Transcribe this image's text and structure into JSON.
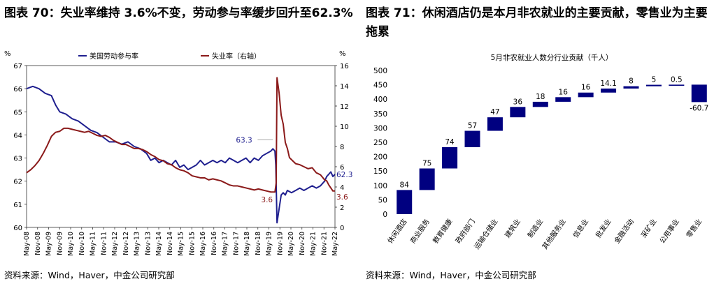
{
  "left_figure": {
    "title": "图表 70：失业率维持 3.6%不变，劳动参与率缓步回升至62.3%",
    "source": "资料来源：Wind，Haver，中金公司研究部"
  },
  "right_figure": {
    "title": "图表 71：休闲酒店仍是本月非农就业的主要贡献，零售业为主要拖累",
    "source": "资料来源：Wind，Haver，中金公司研究部"
  },
  "chart_data": [
    {
      "type": "line",
      "title": "",
      "x_ticks": [
        "May-08",
        "Nov-08",
        "May-09",
        "Nov-09",
        "May-10",
        "Nov-10",
        "May-11",
        "Nov-11",
        "May-12",
        "Nov-12",
        "May-13",
        "Nov-13",
        "May-14",
        "Nov-14",
        "May-15",
        "Nov-15",
        "May-16",
        "Nov-16",
        "May-17",
        "Nov-17",
        "May-18",
        "Nov-18",
        "May-19",
        "Nov-19",
        "May-20",
        "Nov-20",
        "May-21",
        "Nov-21",
        "May-22"
      ],
      "y_left": {
        "label": "%",
        "ticks": [
          67,
          66,
          65,
          64,
          63,
          62,
          61,
          60
        ],
        "range": [
          60,
          67
        ]
      },
      "y_right": {
        "label": "%",
        "ticks": [
          16,
          14,
          12,
          10,
          8,
          6,
          4,
          2,
          0
        ],
        "range": [
          0,
          16
        ]
      },
      "series": [
        {
          "name": "美国劳动参与率",
          "axis": "left",
          "color": "#1f1f8f",
          "points": [
            [
              0,
              66.0
            ],
            [
              3,
              66.1
            ],
            [
              6,
              66.0
            ],
            [
              9,
              65.8
            ],
            [
              12,
              65.7
            ],
            [
              14,
              65.3
            ],
            [
              16,
              65.0
            ],
            [
              19,
              64.9
            ],
            [
              22,
              64.7
            ],
            [
              25,
              64.6
            ],
            [
              28,
              64.4
            ],
            [
              31,
              64.2
            ],
            [
              34,
              64.1
            ],
            [
              37,
              63.9
            ],
            [
              40,
              63.7
            ],
            [
              43,
              63.7
            ],
            [
              46,
              63.6
            ],
            [
              49,
              63.7
            ],
            [
              52,
              63.5
            ],
            [
              55,
              63.4
            ],
            [
              58,
              63.2
            ],
            [
              60,
              62.9
            ],
            [
              62,
              63.0
            ],
            [
              64,
              62.8
            ],
            [
              66,
              62.9
            ],
            [
              68,
              62.8
            ],
            [
              70,
              62.7
            ],
            [
              72,
              62.9
            ],
            [
              74,
              62.6
            ],
            [
              76,
              62.7
            ],
            [
              78,
              62.5
            ],
            [
              80,
              62.6
            ],
            [
              82,
              62.7
            ],
            [
              84,
              62.9
            ],
            [
              86,
              62.7
            ],
            [
              88,
              62.8
            ],
            [
              90,
              62.9
            ],
            [
              92,
              62.8
            ],
            [
              94,
              62.9
            ],
            [
              96,
              62.8
            ],
            [
              98,
              63.0
            ],
            [
              100,
              62.9
            ],
            [
              102,
              62.8
            ],
            [
              104,
              62.9
            ],
            [
              106,
              63.0
            ],
            [
              108,
              62.8
            ],
            [
              110,
              63.0
            ],
            [
              112,
              62.9
            ],
            [
              114,
              63.1
            ],
            [
              116,
              63.2
            ],
            [
              118,
              63.3
            ],
            [
              119,
              63.4
            ],
            [
              120,
              63.3
            ],
            [
              120.4,
              62.7
            ],
            [
              121,
              60.2
            ],
            [
              122,
              60.8
            ],
            [
              123,
              61.4
            ],
            [
              124,
              61.5
            ],
            [
              125,
              61.4
            ],
            [
              126,
              61.6
            ],
            [
              128,
              61.5
            ],
            [
              130,
              61.6
            ],
            [
              132,
              61.7
            ],
            [
              134,
              61.6
            ],
            [
              136,
              61.7
            ],
            [
              138,
              61.8
            ],
            [
              140,
              61.7
            ],
            [
              142,
              61.8
            ],
            [
              144,
              62.0
            ],
            [
              145,
              62.2
            ],
            [
              146,
              62.3
            ],
            [
              147,
              62.4
            ],
            [
              148,
              62.2
            ],
            [
              149,
              62.3
            ]
          ]
        },
        {
          "name": "失业率（右轴）",
          "axis": "right",
          "color": "#8b1a1a",
          "points": [
            [
              0,
              5.4
            ],
            [
              2,
              5.7
            ],
            [
              4,
              6.1
            ],
            [
              6,
              6.6
            ],
            [
              8,
              7.3
            ],
            [
              10,
              8.1
            ],
            [
              12,
              9.0
            ],
            [
              14,
              9.4
            ],
            [
              16,
              9.5
            ],
            [
              18,
              9.8
            ],
            [
              20,
              9.8
            ],
            [
              22,
              9.7
            ],
            [
              24,
              9.6
            ],
            [
              26,
              9.5
            ],
            [
              28,
              9.4
            ],
            [
              30,
              9.5
            ],
            [
              32,
              9.3
            ],
            [
              34,
              9.1
            ],
            [
              36,
              9.0
            ],
            [
              38,
              9.1
            ],
            [
              40,
              8.9
            ],
            [
              42,
              8.6
            ],
            [
              44,
              8.4
            ],
            [
              46,
              8.2
            ],
            [
              48,
              8.2
            ],
            [
              50,
              8.0
            ],
            [
              52,
              7.8
            ],
            [
              54,
              7.8
            ],
            [
              56,
              7.7
            ],
            [
              58,
              7.5
            ],
            [
              60,
              7.2
            ],
            [
              62,
              7.0
            ],
            [
              64,
              6.7
            ],
            [
              66,
              6.6
            ],
            [
              68,
              6.3
            ],
            [
              70,
              6.2
            ],
            [
              72,
              5.9
            ],
            [
              74,
              5.7
            ],
            [
              76,
              5.6
            ],
            [
              78,
              5.4
            ],
            [
              80,
              5.1
            ],
            [
              82,
              5.0
            ],
            [
              84,
              4.9
            ],
            [
              86,
              4.9
            ],
            [
              88,
              4.7
            ],
            [
              90,
              4.8
            ],
            [
              92,
              4.7
            ],
            [
              94,
              4.6
            ],
            [
              96,
              4.4
            ],
            [
              98,
              4.2
            ],
            [
              100,
              4.1
            ],
            [
              102,
              4.1
            ],
            [
              104,
              4.0
            ],
            [
              106,
              3.9
            ],
            [
              108,
              3.8
            ],
            [
              110,
              3.7
            ],
            [
              112,
              3.8
            ],
            [
              114,
              3.7
            ],
            [
              116,
              3.6
            ],
            [
              118,
              3.5
            ],
            [
              120,
              3.5
            ],
            [
              120.6,
              4.4
            ],
            [
              121,
              14.8
            ],
            [
              122,
              13.3
            ],
            [
              123,
              11.1
            ],
            [
              124,
              10.2
            ],
            [
              125,
              8.4
            ],
            [
              126,
              7.8
            ],
            [
              127,
              6.9
            ],
            [
              128,
              6.7
            ],
            [
              130,
              6.3
            ],
            [
              132,
              6.2
            ],
            [
              134,
              6.0
            ],
            [
              136,
              5.8
            ],
            [
              138,
              5.9
            ],
            [
              140,
              5.4
            ],
            [
              142,
              5.2
            ],
            [
              144,
              4.7
            ],
            [
              145,
              4.6
            ],
            [
              146,
              4.2
            ],
            [
              147,
              3.9
            ],
            [
              148,
              3.6
            ],
            [
              149,
              3.6
            ]
          ]
        }
      ],
      "annotations": [
        {
          "text": "63.3",
          "series": "美国劳动参与率"
        },
        {
          "text": "62.3",
          "series": "美国劳动参与率"
        },
        {
          "text": "3.6",
          "series": "失业率（右轴）"
        },
        {
          "text": "3.6",
          "series": "失业率（右轴）"
        }
      ],
      "legend_position": "top"
    },
    {
      "type": "bar",
      "subtype": "waterfall",
      "title": "5月非农就业人数分行业贡献（千人）",
      "categories": [
        "休闲酒店",
        "商业服务",
        "教育健康",
        "政府部门",
        "运输仓储业",
        "建筑业",
        "制造业",
        "其他服务业",
        "信息业",
        "批发业",
        "金融活动",
        "采矿业",
        "公用事业",
        "零售业"
      ],
      "values": [
        84,
        75,
        74,
        57,
        47,
        36,
        18,
        16,
        16,
        14.1,
        8,
        5,
        0.5,
        -60.7
      ],
      "value_labels": [
        "84",
        "75",
        "74",
        "57",
        "47",
        "36",
        "18",
        "16",
        "16",
        "14.1",
        "8",
        "5",
        "0.5",
        "-60.7"
      ],
      "y_ticks": [
        "500",
        "450",
        "400",
        "350",
        "300",
        "250",
        "200",
        "150",
        "100",
        "50",
        "0"
      ],
      "ylim": [
        0,
        500
      ],
      "color": "#000080"
    }
  ]
}
